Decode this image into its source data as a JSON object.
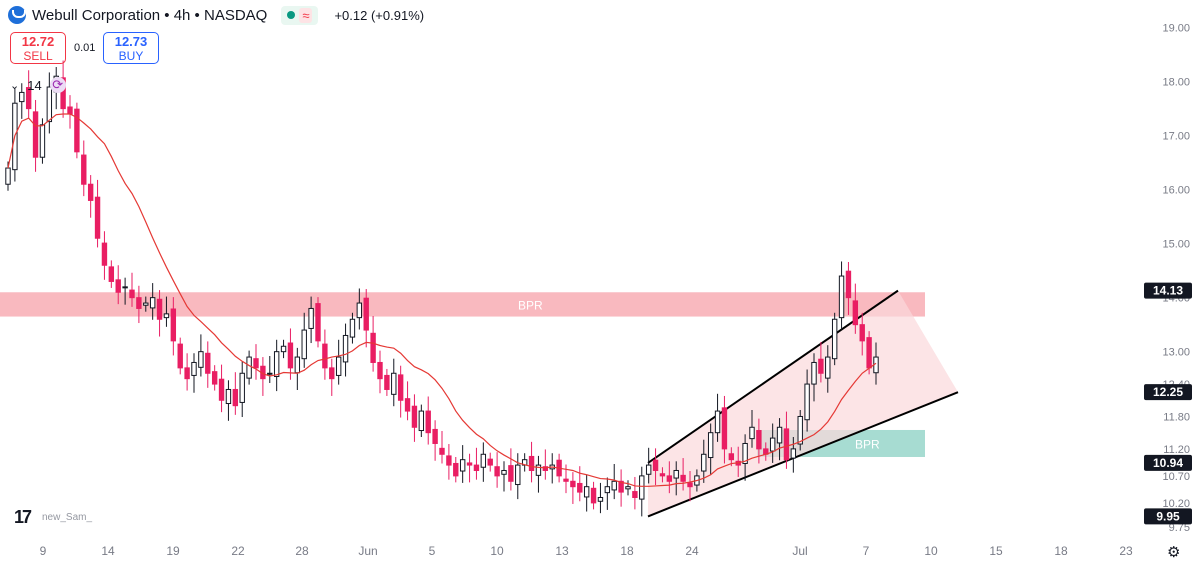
{
  "header": {
    "title": "Webull Corporation • 4h • NASDAQ",
    "change": "+0.12 (+0.91%)",
    "logo_icon": "webull-logo-icon",
    "status_icon": "market-open-dot-icon",
    "wave_icon": "approx-wave-icon"
  },
  "trade": {
    "sell_price": "12.72",
    "sell_label": "SELL",
    "spread": "0.01",
    "buy_price": "12.73",
    "buy_label": "BUY"
  },
  "indicator": {
    "chevron": "⌄",
    "value": "14",
    "icon": "refresh-icon"
  },
  "watermark": {
    "logo": "17",
    "author": "new_Sam_"
  },
  "colors": {
    "up": "#131722",
    "down": "#e91e63",
    "ma": "#e53935",
    "bpr_red": "#f7a1a9",
    "bpr_green": "#82cdbf",
    "channel_fill": "#fbd8dc"
  },
  "chart_data": {
    "type": "candlestick",
    "timeframe": "4h",
    "symbol": "Webull Corporation",
    "exchange": "NASDAQ",
    "y_axis": {
      "ylim": [
        9.55,
        19.4
      ],
      "ticks": [
        "19.00",
        "18.00",
        "17.00",
        "16.00",
        "15.00",
        "14.00",
        "13.00",
        "12.40",
        "11.80",
        "11.20",
        "10.70",
        "10.20",
        "9.75"
      ]
    },
    "x_axis": {
      "labels": [
        "9",
        "14",
        "19",
        "22",
        "28",
        "Jun",
        "5",
        "10",
        "13",
        "18",
        "24",
        "Jul",
        "7",
        "10",
        "15",
        "18",
        "23"
      ],
      "label_x": [
        43,
        108,
        173,
        238,
        302,
        368,
        432,
        497,
        562,
        627,
        692,
        800,
        866,
        931,
        996,
        1061,
        1126
      ]
    },
    "price_labels": [
      {
        "value": "14.13",
        "style": "dark"
      },
      {
        "value": "12.25",
        "style": "dark"
      },
      {
        "value": "10.94",
        "style": "dark"
      },
      {
        "value": "9.95",
        "style": "dark"
      }
    ],
    "zones": [
      {
        "label": "BPR",
        "low": 13.65,
        "high": 14.1,
        "x_start": 0,
        "x_end": 925,
        "color": "red"
      },
      {
        "label": "BPR",
        "low": 11.05,
        "high": 11.55,
        "x_start": 757,
        "x_end": 925,
        "color": "green"
      }
    ],
    "channel": {
      "upper": [
        [
          648,
          10.94
        ],
        [
          898,
          14.13
        ]
      ],
      "lower": [
        [
          648,
          9.95
        ],
        [
          958,
          12.25
        ]
      ]
    },
    "candles_close": [
      16.4,
      17.6,
      17.8,
      17.5,
      16.6,
      17.2,
      17.9,
      18.1,
      17.5,
      17.4,
      16.7,
      16.1,
      15.8,
      15.1,
      14.6,
      14.3,
      14.1,
      14.2,
      14.0,
      13.8,
      13.9,
      14.0,
      13.6,
      13.7,
      13.2,
      12.7,
      12.5,
      12.8,
      13.0,
      12.6,
      12.4,
      12.1,
      12.3,
      12.0,
      12.6,
      12.9,
      12.7,
      12.5,
      12.6,
      13.0,
      13.1,
      12.7,
      12.9,
      13.4,
      13.8,
      13.2,
      12.7,
      12.5,
      12.9,
      13.3,
      13.6,
      13.9,
      13.4,
      12.8,
      12.5,
      12.3,
      12.6,
      12.1,
      11.9,
      11.6,
      11.9,
      11.5,
      11.3,
      11.1,
      10.9,
      10.7,
      11.0,
      10.9,
      10.8,
      11.1,
      10.9,
      10.7,
      10.8,
      10.6,
      10.9,
      11.0,
      10.8,
      10.9,
      10.8,
      10.9,
      10.7,
      10.6,
      10.5,
      10.4,
      10.5,
      10.2,
      10.3,
      10.5,
      10.6,
      10.4,
      10.5,
      10.3,
      10.7,
      10.9,
      10.8,
      10.7,
      10.6,
      10.8,
      10.6,
      10.5,
      10.7,
      11.1,
      11.5,
      11.9,
      11.2,
      11.0,
      10.9,
      11.3,
      11.6,
      11.2,
      11.1,
      11.4,
      11.6,
      11.0,
      11.2,
      11.8,
      12.4,
      12.8,
      12.6,
      12.9,
      13.6,
      14.4,
      14.0,
      13.5,
      13.2,
      12.7,
      12.9
    ],
    "moving_average": {
      "period": "14",
      "type": "MA"
    }
  }
}
